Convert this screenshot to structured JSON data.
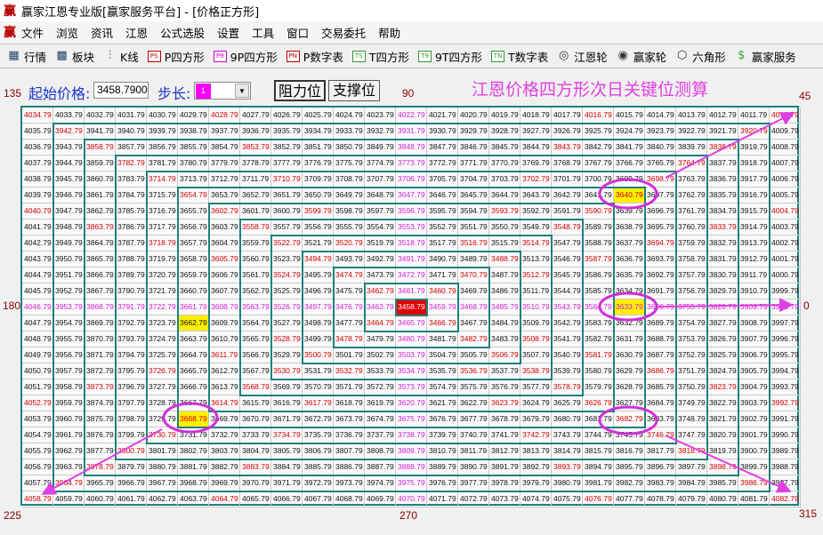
{
  "window": {
    "title": "赢家江恩专业版[赢家服务平台] - [价格正方形]",
    "logo": "赢"
  },
  "menu": [
    "文件",
    "浏览",
    "资讯",
    "江恩",
    "公式选股",
    "设置",
    "工具",
    "窗口",
    "交易委托",
    "帮助"
  ],
  "toolbar": [
    {
      "icon": "quote-table-icon",
      "glyph": "▦",
      "label": "行情"
    },
    {
      "icon": "sector-blocks-icon",
      "glyph": "▩",
      "label": "板块"
    },
    {
      "icon": "candlestick-icon",
      "glyph": "⫶",
      "label": "K线"
    },
    {
      "icon": "ps-icon",
      "glyph": "PS",
      "label": "P四方形"
    },
    {
      "icon": "p9-icon",
      "glyph": "P9",
      "label": "9P四方形"
    },
    {
      "icon": "pn-icon",
      "glyph": "PN",
      "label": "P数字表"
    },
    {
      "icon": "ts-icon",
      "glyph": "TS",
      "label": "T四方形"
    },
    {
      "icon": "t9-icon",
      "glyph": "T9",
      "label": "9T四方形"
    },
    {
      "icon": "tn-icon",
      "glyph": "TN",
      "label": "T数字表"
    },
    {
      "icon": "gann-wheel-icon",
      "glyph": "◎",
      "label": "江恩轮"
    },
    {
      "icon": "winner-wheel-icon",
      "glyph": "◉",
      "label": "赢家轮"
    },
    {
      "icon": "hexagon-icon",
      "glyph": "⬡",
      "label": "六角形"
    },
    {
      "icon": "dollar-icon",
      "glyph": "$",
      "label": "赢家服务"
    }
  ],
  "controls": {
    "start_price_label": "起始价格:",
    "start_price": "3458.7900",
    "step_label": "步长:",
    "step_value": "1",
    "resistance_button": "阻力位",
    "support_button": "支撑位"
  },
  "heading": "江恩价格四方形次日关键位测算",
  "angles": {
    "a135": "135",
    "a90": "90",
    "a45": "45",
    "a180": "180",
    "a0": "0",
    "a225": "225",
    "a270": "270",
    "a315": "315"
  },
  "square": {
    "center_price": 3458.79,
    "step": 1,
    "size": 25,
    "highlighted": [
      3640.79,
      3633.79,
      3662.79,
      3668.79
    ]
  },
  "colors": {
    "frame": "#1f7f80",
    "red": "#d00000",
    "magenta": "#d020d0",
    "highlight": "#ffef00",
    "annotation": "#e040e0"
  }
}
